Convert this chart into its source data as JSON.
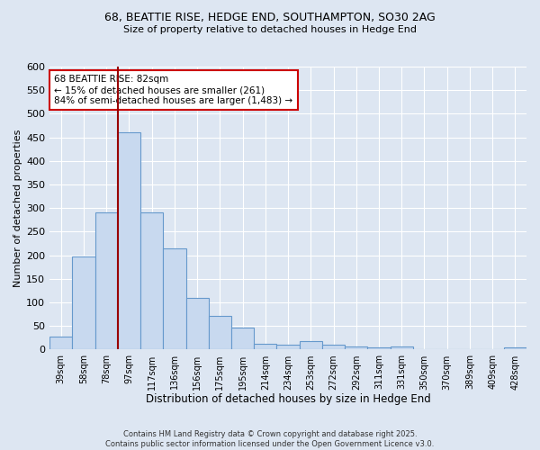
{
  "title_line1": "68, BEATTIE RISE, HEDGE END, SOUTHAMPTON, SO30 2AG",
  "title_line2": "Size of property relative to detached houses in Hedge End",
  "xlabel": "Distribution of detached houses by size in Hedge End",
  "ylabel": "Number of detached properties",
  "footnote": "Contains HM Land Registry data © Crown copyright and database right 2025.\nContains public sector information licensed under the Open Government Licence v3.0.",
  "categories": [
    "39sqm",
    "58sqm",
    "78sqm",
    "97sqm",
    "117sqm",
    "136sqm",
    "156sqm",
    "175sqm",
    "195sqm",
    "214sqm",
    "234sqm",
    "253sqm",
    "272sqm",
    "292sqm",
    "311sqm",
    "331sqm",
    "350sqm",
    "370sqm",
    "389sqm",
    "409sqm",
    "428sqm"
  ],
  "values": [
    28,
    197,
    290,
    460,
    290,
    215,
    110,
    72,
    47,
    12,
    10,
    18,
    10,
    7,
    5,
    7,
    0,
    0,
    0,
    0,
    5
  ],
  "bar_color": "#c8d9ef",
  "bar_edge_color": "#6699cc",
  "background_color": "#dde6f2",
  "grid_color": "#ffffff",
  "red_line_x": 2.5,
  "annotation_text": "68 BEATTIE RISE: 82sqm\n← 15% of detached houses are smaller (261)\n84% of semi-detached houses are larger (1,483) →",
  "annotation_box_color": "#ffffff",
  "annotation_box_edge": "#cc0000",
  "red_line_color": "#990000",
  "ylim": [
    0,
    600
  ],
  "yticks": [
    0,
    50,
    100,
    150,
    200,
    250,
    300,
    350,
    400,
    450,
    500,
    550,
    600
  ]
}
